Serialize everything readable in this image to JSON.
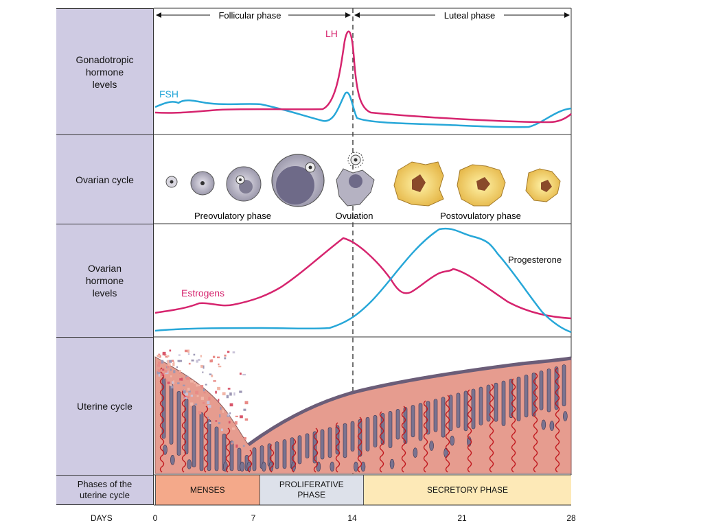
{
  "timeline": {
    "follicular_phase": "Follicular phase",
    "luteal_phase": "Luteal phase"
  },
  "rows": {
    "gonadotropic": "Gonadotropic\nhormone\nlevels",
    "ovarian_cycle": "Ovarian cycle",
    "ovarian_hormone": "Ovarian\nhormone\nlevels",
    "uterine_cycle": "Uterine cycle",
    "phases": "Phases of the\nuterine cycle"
  },
  "gonadotropic_panel": {
    "lh_label": "LH",
    "fsh_label": "FSH",
    "colors": {
      "lh": "#d6246e",
      "fsh": "#27a7d8"
    }
  },
  "ovarian_panel": {
    "preovulatory": "Preovulatory phase",
    "ovulation": "Ovulation",
    "postovulatory": "Postovulatory phase"
  },
  "ovarian_hormone_panel": {
    "estrogens_label": "Estrogens",
    "progesterone_label": "Progesterone",
    "colors": {
      "estrogens": "#d6246e",
      "progesterone": "#27a7d8"
    }
  },
  "uterine_phases": [
    {
      "label": "MENSES",
      "start_day": 0,
      "end_day": 7,
      "color": "#f4a98a"
    },
    {
      "label": "PROLIFERATIVE\nPHASE",
      "start_day": 7,
      "end_day": 14,
      "color": "#dde1ea"
    },
    {
      "label": "SECRETORY PHASE",
      "start_day": 14,
      "end_day": 28,
      "color": "#fde9b7"
    }
  ],
  "days": {
    "label": "DAYS",
    "ticks": [
      "0",
      "7",
      "14",
      "21",
      "28"
    ]
  }
}
